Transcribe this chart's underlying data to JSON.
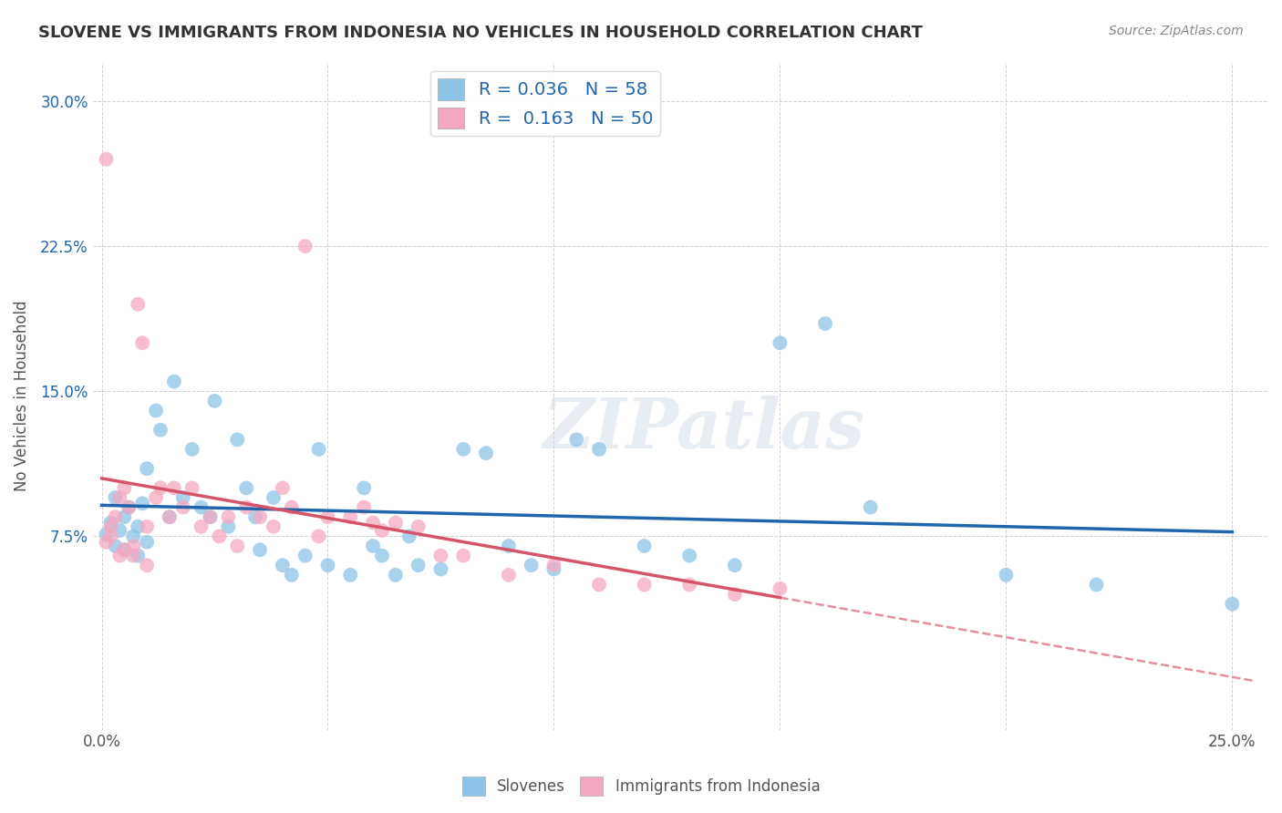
{
  "title": "SLOVENE VS IMMIGRANTS FROM INDONESIA NO VEHICLES IN HOUSEHOLD CORRELATION CHART",
  "source": "Source: ZipAtlas.com",
  "ylabel": "No Vehicles in Household",
  "ytick_vals": [
    0.075,
    0.15,
    0.225,
    0.3
  ],
  "ytick_labels": [
    "7.5%",
    "15.0%",
    "22.5%",
    "30.0%"
  ],
  "xtick_vals": [
    0.0,
    0.05,
    0.1,
    0.15,
    0.2,
    0.25
  ],
  "xtick_labels": [
    "0.0%",
    "",
    "",
    "",
    "",
    "25.0%"
  ],
  "xlim": [
    -0.002,
    0.258
  ],
  "ylim": [
    -0.025,
    0.32
  ],
  "blue_scatter_color": "#8ec4e8",
  "pink_scatter_color": "#f4a8c0",
  "blue_line_color": "#2166ac",
  "pink_line_color": "#d4546a",
  "legend_r_blue": "0.036",
  "legend_n_blue": "58",
  "legend_r_pink": "0.163",
  "legend_n_pink": "50",
  "legend_text_blue": "Slovenes",
  "legend_text_pink": "Immigrants from Indonesia",
  "watermark": "ZIPatlas",
  "slovene_x": [
    0.001,
    0.002,
    0.003,
    0.003,
    0.004,
    0.005,
    0.005,
    0.006,
    0.007,
    0.008,
    0.008,
    0.009,
    0.01,
    0.01,
    0.012,
    0.013,
    0.015,
    0.016,
    0.018,
    0.02,
    0.022,
    0.024,
    0.025,
    0.028,
    0.03,
    0.032,
    0.034,
    0.035,
    0.038,
    0.04,
    0.042,
    0.045,
    0.048,
    0.05,
    0.055,
    0.058,
    0.06,
    0.062,
    0.065,
    0.068,
    0.07,
    0.075,
    0.08,
    0.085,
    0.09,
    0.095,
    0.1,
    0.105,
    0.11,
    0.12,
    0.13,
    0.14,
    0.15,
    0.16,
    0.17,
    0.2,
    0.22,
    0.25
  ],
  "slovene_y": [
    0.076,
    0.082,
    0.07,
    0.095,
    0.078,
    0.085,
    0.068,
    0.09,
    0.075,
    0.08,
    0.065,
    0.092,
    0.11,
    0.072,
    0.14,
    0.13,
    0.085,
    0.155,
    0.095,
    0.12,
    0.09,
    0.085,
    0.145,
    0.08,
    0.125,
    0.1,
    0.085,
    0.068,
    0.095,
    0.06,
    0.055,
    0.065,
    0.12,
    0.06,
    0.055,
    0.1,
    0.07,
    0.065,
    0.055,
    0.075,
    0.06,
    0.058,
    0.12,
    0.118,
    0.07,
    0.06,
    0.058,
    0.125,
    0.12,
    0.07,
    0.065,
    0.06,
    0.175,
    0.185,
    0.09,
    0.055,
    0.05,
    0.04
  ],
  "indonesia_x": [
    0.001,
    0.001,
    0.002,
    0.002,
    0.003,
    0.004,
    0.004,
    0.005,
    0.005,
    0.006,
    0.007,
    0.007,
    0.008,
    0.009,
    0.01,
    0.01,
    0.012,
    0.013,
    0.015,
    0.016,
    0.018,
    0.02,
    0.022,
    0.024,
    0.026,
    0.028,
    0.03,
    0.032,
    0.035,
    0.038,
    0.04,
    0.042,
    0.045,
    0.048,
    0.05,
    0.055,
    0.058,
    0.06,
    0.062,
    0.065,
    0.07,
    0.075,
    0.08,
    0.09,
    0.1,
    0.11,
    0.12,
    0.13,
    0.14,
    0.15
  ],
  "indonesia_y": [
    0.27,
    0.072,
    0.075,
    0.08,
    0.085,
    0.095,
    0.065,
    0.1,
    0.068,
    0.09,
    0.07,
    0.065,
    0.195,
    0.175,
    0.08,
    0.06,
    0.095,
    0.1,
    0.085,
    0.1,
    0.09,
    0.1,
    0.08,
    0.085,
    0.075,
    0.085,
    0.07,
    0.09,
    0.085,
    0.08,
    0.1,
    0.09,
    0.225,
    0.075,
    0.085,
    0.085,
    0.09,
    0.082,
    0.078,
    0.082,
    0.08,
    0.065,
    0.065,
    0.055,
    0.06,
    0.05,
    0.05,
    0.05,
    0.045,
    0.048
  ]
}
